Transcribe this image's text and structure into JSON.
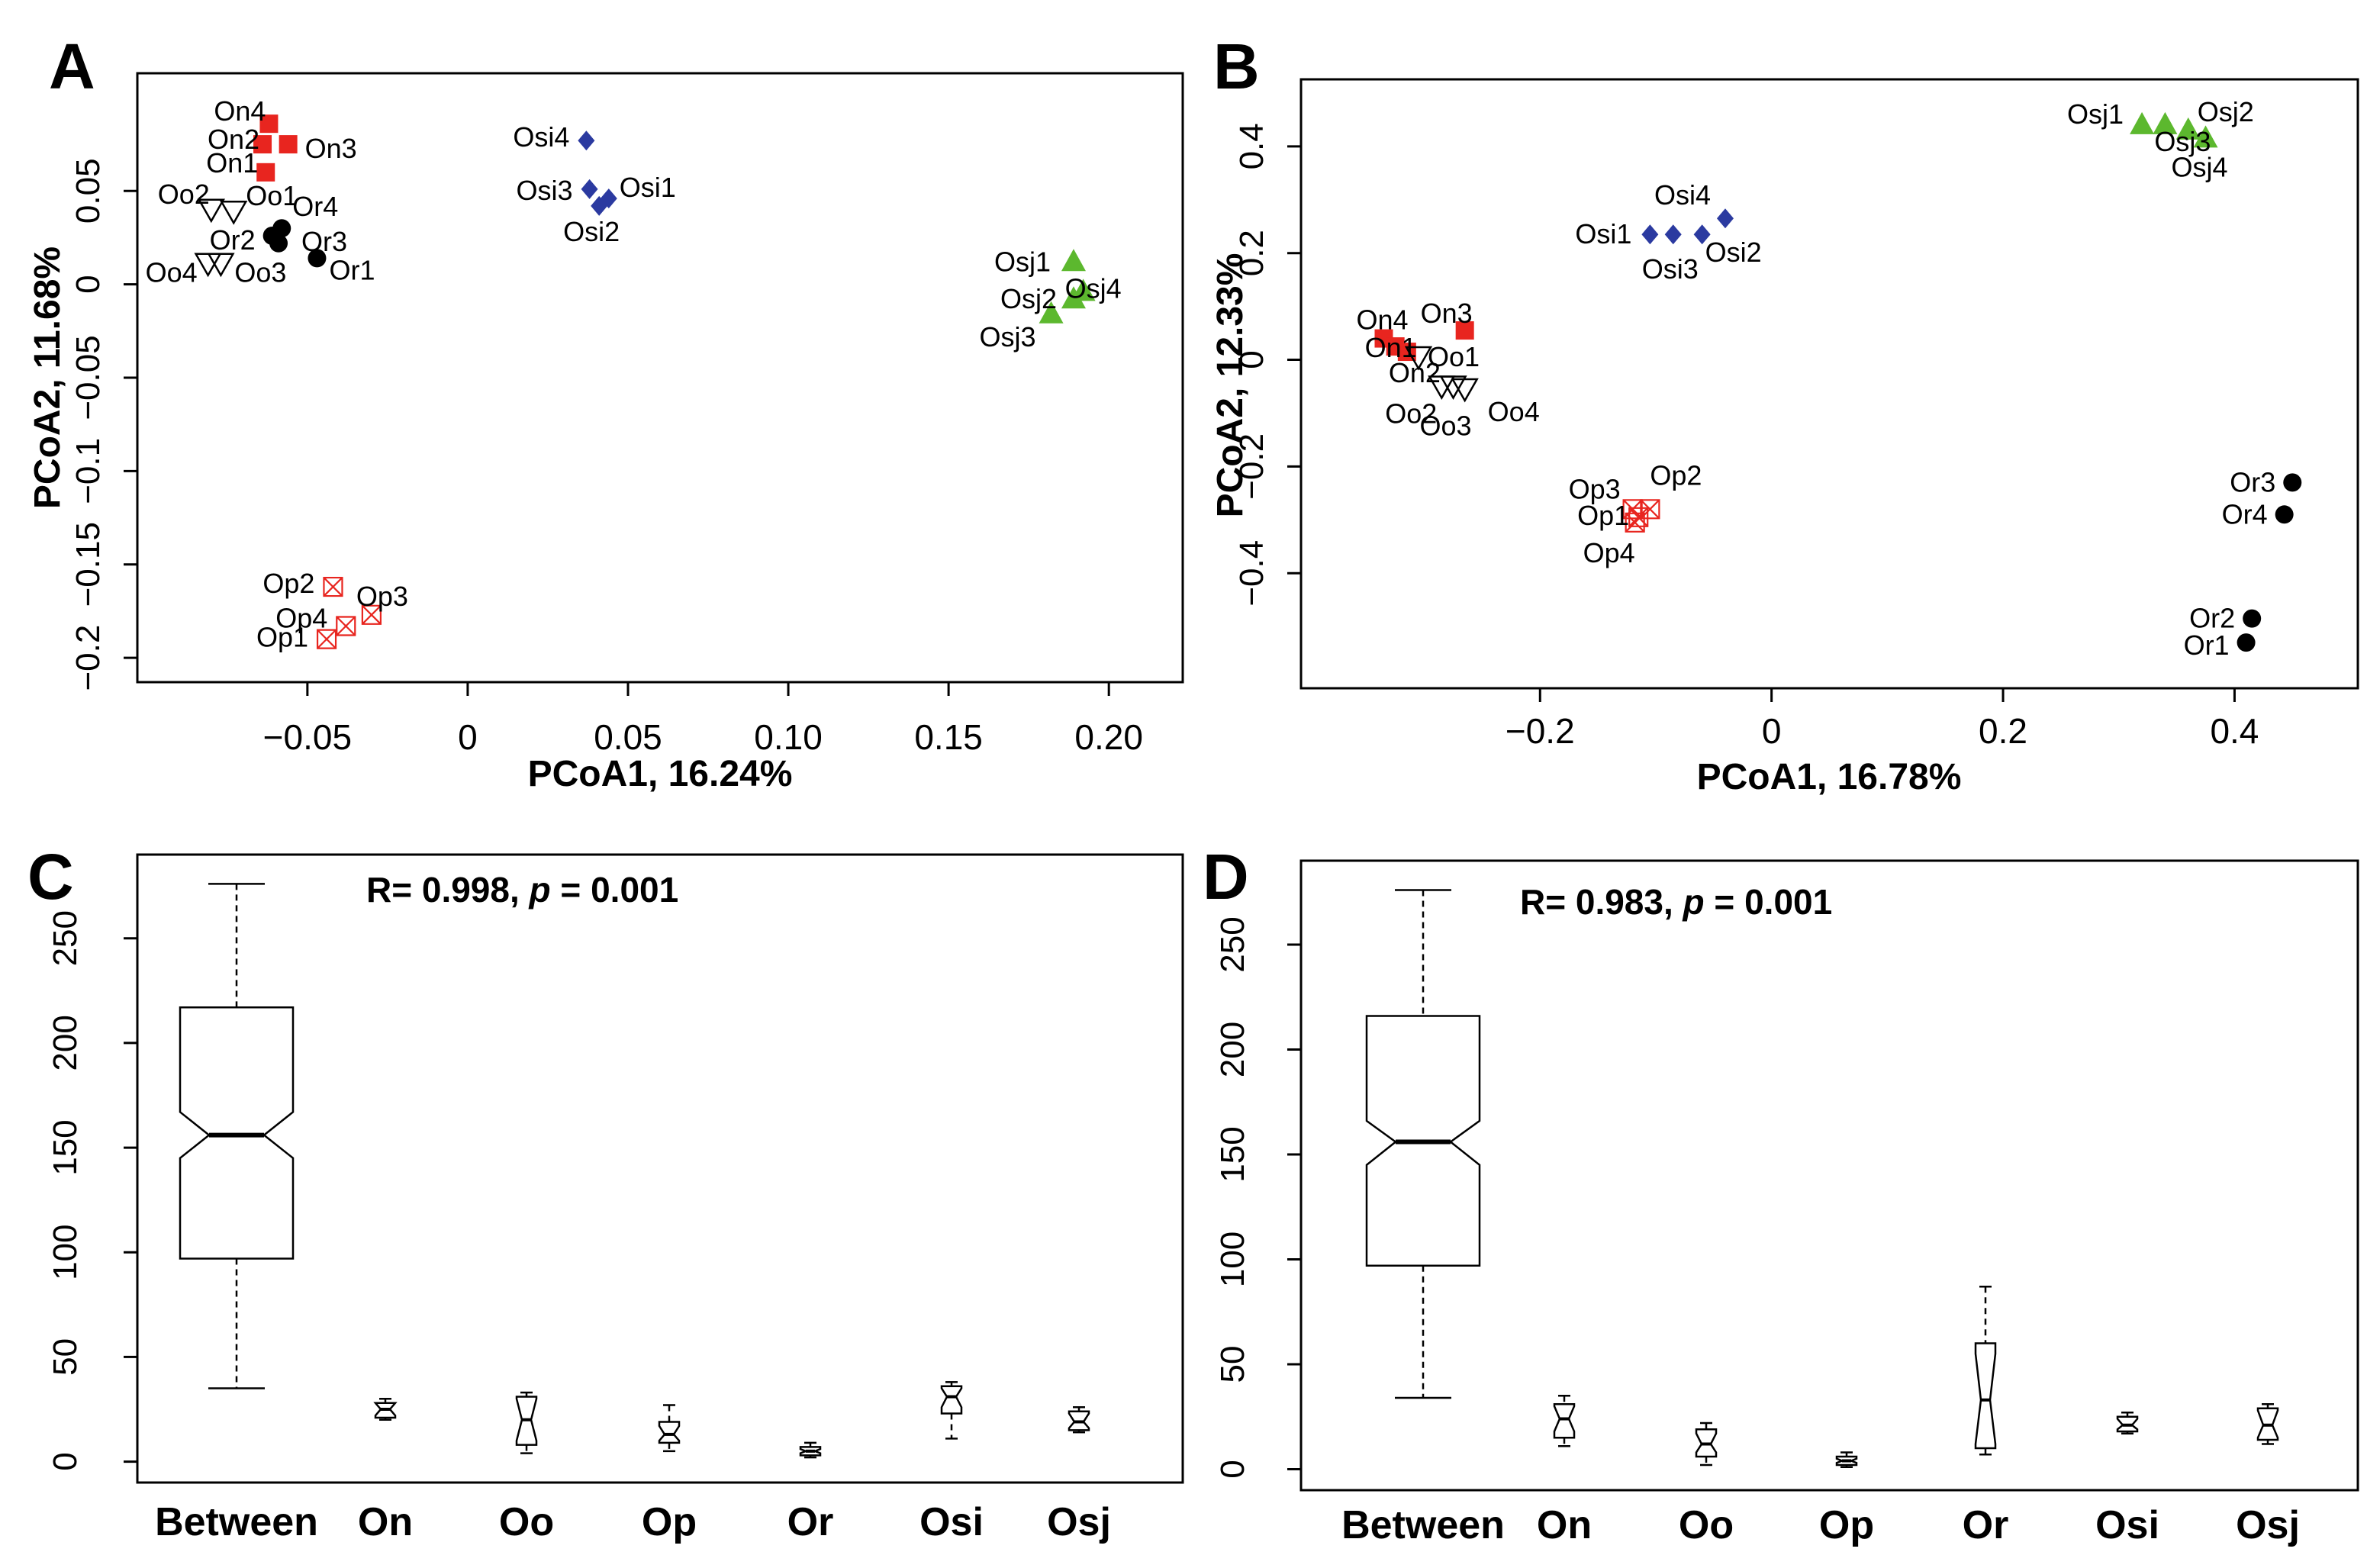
{
  "colors": {
    "On": "#e8251f",
    "Oo": "#000000",
    "Op": "#e8251f",
    "Or": "#000000",
    "Osi": "#2b3aa0",
    "Osj": "#5cb82e",
    "axis": "#000000"
  },
  "chart_data": [
    {
      "panel": "A",
      "type": "scatter",
      "xlabel": "PCoA1, 16.24%",
      "ylabel": "PCoA2, 11.68%",
      "xlim": [
        -0.09,
        0.21
      ],
      "ylim": [
        -0.2,
        0.1
      ],
      "xticks": [
        -0.05,
        0,
        0.05,
        0.1,
        0.15,
        0.2
      ],
      "xtick_labels": [
        "−0.05",
        "0",
        "0.05",
        "0.10",
        "0.15",
        "0.20"
      ],
      "yticks": [
        -0.2,
        -0.15,
        -0.1,
        -0.05,
        0,
        0.05
      ],
      "ytick_labels": [
        "−0.2",
        "−0.15",
        "−0.1",
        "−0.05",
        "0",
        "0.05"
      ],
      "points": [
        {
          "label": "On4",
          "group": "On",
          "x": -0.062,
          "y": 0.086
        },
        {
          "label": "On2",
          "group": "On",
          "x": -0.064,
          "y": 0.075
        },
        {
          "label": "On3",
          "group": "On",
          "x": -0.056,
          "y": 0.075
        },
        {
          "label": "On1",
          "group": "On",
          "x": -0.063,
          "y": 0.06
        },
        {
          "label": "Oo2",
          "group": "Oo",
          "x": -0.08,
          "y": 0.04
        },
        {
          "label": "Oo1",
          "group": "Oo",
          "x": -0.073,
          "y": 0.039
        },
        {
          "label": "Oo4",
          "group": "Oo",
          "x": -0.081,
          "y": 0.011
        },
        {
          "label": "Oo3",
          "group": "Oo",
          "x": -0.077,
          "y": 0.011
        },
        {
          "label": "Or4",
          "group": "Or",
          "x": -0.058,
          "y": 0.03
        },
        {
          "label": "Or2",
          "group": "Or",
          "x": -0.061,
          "y": 0.026
        },
        {
          "label": "Or3",
          "group": "Or",
          "x": -0.059,
          "y": 0.022
        },
        {
          "label": "Or1",
          "group": "Or",
          "x": -0.047,
          "y": 0.014
        },
        {
          "label": "Osi4",
          "group": "Osi",
          "x": 0.037,
          "y": 0.077
        },
        {
          "label": "Osi3",
          "group": "Osi",
          "x": 0.038,
          "y": 0.051
        },
        {
          "label": "Osi1",
          "group": "Osi",
          "x": 0.044,
          "y": 0.046
        },
        {
          "label": "Osi2",
          "group": "Osi",
          "x": 0.041,
          "y": 0.042
        },
        {
          "label": "Osj1",
          "group": "Osj",
          "x": 0.189,
          "y": 0.012
        },
        {
          "label": "Osj4",
          "group": "Osj",
          "x": 0.192,
          "y": -0.004
        },
        {
          "label": "Osj2",
          "group": "Osj",
          "x": 0.189,
          "y": -0.008
        },
        {
          "label": "Osj3",
          "group": "Osj",
          "x": 0.182,
          "y": -0.016
        },
        {
          "label": "Op2",
          "group": "Op",
          "x": -0.042,
          "y": -0.162
        },
        {
          "label": "Op3",
          "group": "Op",
          "x": -0.03,
          "y": -0.177
        },
        {
          "label": "Op4",
          "group": "Op",
          "x": -0.038,
          "y": -0.183
        },
        {
          "label": "Op1",
          "group": "Op",
          "x": -0.044,
          "y": -0.19
        }
      ]
    },
    {
      "panel": "B",
      "type": "scatter",
      "xlabel": "PCoA1, 16.78%",
      "ylabel": "PCoA2, 12.33%",
      "xlim": [
        -0.37,
        0.47
      ],
      "ylim": [
        -0.57,
        0.48
      ],
      "xticks": [
        -0.2,
        0,
        0.2,
        0.4
      ],
      "xtick_labels": [
        "−0.2",
        "0",
        "0.2",
        "0.4"
      ],
      "yticks": [
        -0.4,
        -0.2,
        0,
        0.2,
        0.4
      ],
      "ytick_labels": [
        "−0.4",
        "−0.2",
        "0",
        "0.2",
        "0.4"
      ],
      "points": [
        {
          "label": "Osj1",
          "group": "Osj",
          "x": 0.32,
          "y": 0.44
        },
        {
          "label": "Osj3",
          "group": "Osj",
          "x": 0.34,
          "y": 0.44
        },
        {
          "label": "Osj2",
          "group": "Osj",
          "x": 0.36,
          "y": 0.43
        },
        {
          "label": "Osj4",
          "group": "Osj",
          "x": 0.375,
          "y": 0.415
        },
        {
          "label": "Osi4",
          "group": "Osi",
          "x": -0.04,
          "y": 0.265
        },
        {
          "label": "Osi1",
          "group": "Osi",
          "x": -0.105,
          "y": 0.235
        },
        {
          "label": "Osi3",
          "group": "Osi",
          "x": -0.085,
          "y": 0.235
        },
        {
          "label": "Osi2",
          "group": "Osi",
          "x": -0.06,
          "y": 0.235
        },
        {
          "label": "On4",
          "group": "On",
          "x": -0.335,
          "y": 0.04
        },
        {
          "label": "On1",
          "group": "On",
          "x": -0.325,
          "y": 0.025
        },
        {
          "label": "On2",
          "group": "On",
          "x": -0.315,
          "y": 0.015
        },
        {
          "label": "On3",
          "group": "On",
          "x": -0.265,
          "y": 0.055
        },
        {
          "label": "Oo1",
          "group": "Oo",
          "x": -0.305,
          "y": 0.005
        },
        {
          "label": "Oo2",
          "group": "Oo",
          "x": -0.285,
          "y": -0.05
        },
        {
          "label": "Oo3",
          "group": "Oo",
          "x": -0.275,
          "y": -0.05
        },
        {
          "label": "Oo4",
          "group": "Oo",
          "x": -0.265,
          "y": -0.055
        },
        {
          "label": "Op3",
          "group": "Op",
          "x": -0.12,
          "y": -0.28
        },
        {
          "label": "Op2",
          "group": "Op",
          "x": -0.105,
          "y": -0.28
        },
        {
          "label": "Op1",
          "group": "Op",
          "x": -0.115,
          "y": -0.295
        },
        {
          "label": "Op4",
          "group": "Op",
          "x": -0.118,
          "y": -0.305
        },
        {
          "label": "Or3",
          "group": "Or",
          "x": 0.45,
          "y": -0.23
        },
        {
          "label": "Or4",
          "group": "Or",
          "x": 0.443,
          "y": -0.29
        },
        {
          "label": "Or2",
          "group": "Or",
          "x": 0.415,
          "y": -0.485
        },
        {
          "label": "Or1",
          "group": "Or",
          "x": 0.41,
          "y": -0.53
        }
      ]
    },
    {
      "panel": "C",
      "type": "boxplot",
      "annotation": {
        "r_part": "R= 0.998, ",
        "p_symbol": "p",
        "p_part": " = 0.001"
      },
      "ylim": [
        -10,
        290
      ],
      "yticks": [
        0,
        50,
        100,
        150,
        200,
        250
      ],
      "categories": [
        "Between",
        "On",
        "Oo",
        "Op",
        "Or",
        "Osi",
        "Osj"
      ],
      "boxes": [
        {
          "min": 35,
          "q1": 97,
          "median": 156,
          "q3": 217,
          "max": 276,
          "notch_lo": 145,
          "notch_hi": 167
        },
        {
          "min": 20,
          "q1": 21,
          "median": 25,
          "q3": 28,
          "max": 30,
          "notch_lo": 22,
          "notch_hi": 28
        },
        {
          "min": 4,
          "q1": 8,
          "median": 20,
          "q3": 31,
          "max": 33,
          "notch_lo": 10,
          "notch_hi": 30
        },
        {
          "min": 5,
          "q1": 9,
          "median": 13,
          "q3": 19,
          "max": 27,
          "notch_lo": 10,
          "notch_hi": 17
        },
        {
          "min": 2,
          "q1": 3,
          "median": 5,
          "q3": 7,
          "max": 9,
          "notch_lo": 4,
          "notch_hi": 6
        },
        {
          "min": 11,
          "q1": 23,
          "median": 31,
          "q3": 36,
          "max": 38,
          "notch_lo": 26,
          "notch_hi": 35
        },
        {
          "min": 14,
          "q1": 15,
          "median": 19,
          "q3": 24,
          "max": 26,
          "notch_lo": 16,
          "notch_hi": 23
        }
      ]
    },
    {
      "panel": "D",
      "type": "boxplot",
      "annotation": {
        "r_part": "R= 0.983, ",
        "p_symbol": "p",
        "p_part": " = 0.001"
      },
      "ylim": [
        -10,
        290
      ],
      "yticks": [
        0,
        50,
        100,
        150,
        200,
        250
      ],
      "categories": [
        "Between",
        "On",
        "Oo",
        "Op",
        "Or",
        "Osi",
        "Osj"
      ],
      "boxes": [
        {
          "min": 34,
          "q1": 97,
          "median": 156,
          "q3": 216,
          "max": 276,
          "notch_lo": 145,
          "notch_hi": 166
        },
        {
          "min": 11,
          "q1": 15,
          "median": 24,
          "q3": 31,
          "max": 35,
          "notch_lo": 18,
          "notch_hi": 30
        },
        {
          "min": 2,
          "q1": 6,
          "median": 12,
          "q3": 19,
          "max": 22,
          "notch_lo": 8,
          "notch_hi": 17
        },
        {
          "min": 1,
          "q1": 2,
          "median": 4,
          "q3": 6,
          "max": 8,
          "notch_lo": 3,
          "notch_hi": 5
        },
        {
          "min": 7,
          "q1": 10,
          "median": 33,
          "q3": 60,
          "max": 87,
          "notch_lo": 12,
          "notch_hi": 55
        },
        {
          "min": 17,
          "q1": 18,
          "median": 21,
          "q3": 25,
          "max": 27,
          "notch_lo": 19,
          "notch_hi": 24
        },
        {
          "min": 12,
          "q1": 14,
          "median": 21,
          "q3": 29,
          "max": 31,
          "notch_lo": 15,
          "notch_hi": 28
        }
      ]
    }
  ]
}
